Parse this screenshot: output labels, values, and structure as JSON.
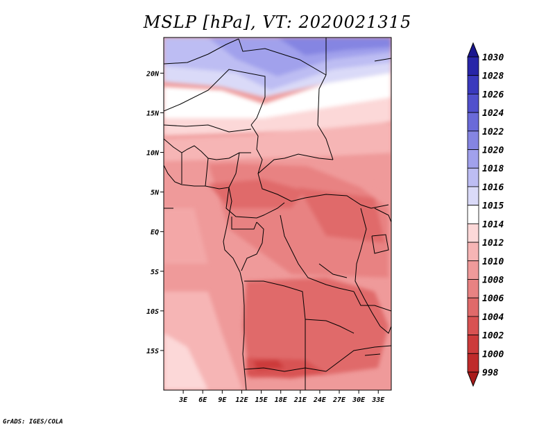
{
  "title": "MSLP [hPa], VT: 2020021315",
  "credit": "GrADS: IGES/COLA",
  "map": {
    "lon_range": [
      0,
      35
    ],
    "lat_range": [
      -20,
      24.5
    ],
    "lat_ticks": [
      {
        "value": 20,
        "label": "20N"
      },
      {
        "value": 15,
        "label": "15N"
      },
      {
        "value": 10,
        "label": "10N"
      },
      {
        "value": 5,
        "label": "5N"
      },
      {
        "value": 0,
        "label": "EQ"
      },
      {
        "value": -5,
        "label": "5S"
      },
      {
        "value": -10,
        "label": "10S"
      },
      {
        "value": -15,
        "label": "15S"
      }
    ],
    "lon_ticks": [
      {
        "value": 3,
        "label": "3E"
      },
      {
        "value": 6,
        "label": "6E"
      },
      {
        "value": 9,
        "label": "9E"
      },
      {
        "value": 12,
        "label": "12E"
      },
      {
        "value": 15,
        "label": "15E"
      },
      {
        "value": 18,
        "label": "18E"
      },
      {
        "value": 21,
        "label": "21E"
      },
      {
        "value": 24,
        "label": "24E"
      },
      {
        "value": 27,
        "label": "27E"
      },
      {
        "value": 30,
        "label": "30E"
      },
      {
        "value": 33,
        "label": "33E"
      }
    ]
  },
  "colorbar": {
    "labels": [
      "1030",
      "1028",
      "1026",
      "1024",
      "1022",
      "1020",
      "1018",
      "1016",
      "1015",
      "1014",
      "1012",
      "1010",
      "1008",
      "1006",
      "1004",
      "1002",
      "1000",
      "998"
    ],
    "colors": [
      "#1a168f",
      "#2825a8",
      "#3a39bd",
      "#5150cc",
      "#6a6ad8",
      "#8585e2",
      "#a1a1ec",
      "#bdbdf3",
      "#dadaf8",
      "#ffffff",
      "#fcd8d8",
      "#f6b5b5",
      "#ef9a9a",
      "#e88282",
      "#e06a6a",
      "#d85252",
      "#cc3b3b",
      "#bf2a2a",
      "#a81b1b"
    ]
  }
}
